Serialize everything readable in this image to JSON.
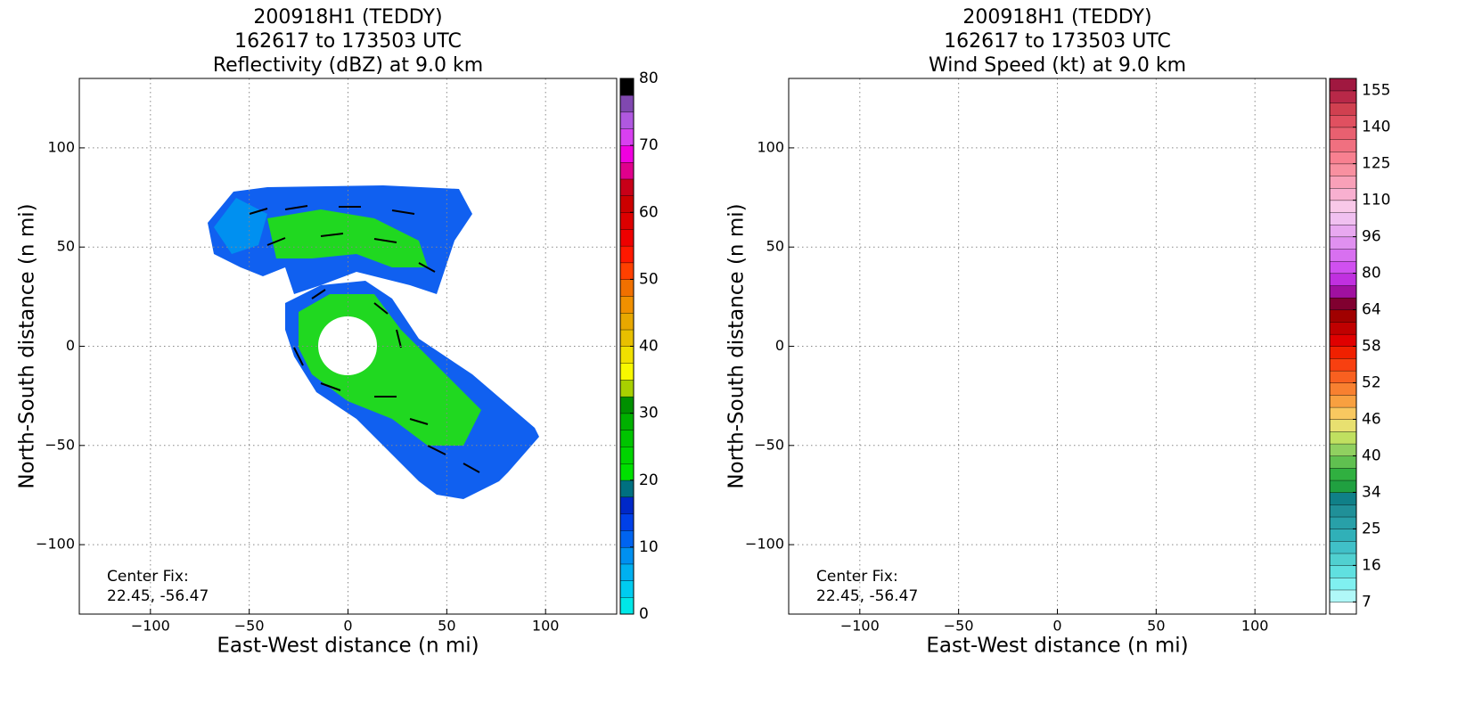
{
  "chart_data": [
    {
      "type": "heatmap",
      "title": [
        "200918H1 (TEDDY)",
        "162617 to 173503 UTC",
        "Reflectivity (dBZ) at 9.0 km"
      ],
      "xlabel": "East-West distance (n mi)",
      "ylabel": "North-South distance (n mi)",
      "xlim": [
        -136,
        136
      ],
      "ylim": [
        -135,
        135
      ],
      "xticks": [
        {
          "value": -100,
          "label": "−100"
        },
        {
          "value": -50,
          "label": "−50"
        },
        0,
        50,
        100
      ],
      "yticks": [
        {
          "value": -100,
          "label": "−100"
        },
        {
          "value": -50,
          "label": "−50"
        },
        0,
        50,
        100
      ],
      "grid": true,
      "annotation": [
        "Center Fix:",
        "22.45, -56.47"
      ],
      "colorbar": {
        "lim": [
          0,
          80
        ],
        "ticks": [
          0,
          10,
          20,
          30,
          40,
          50,
          60,
          70,
          80
        ],
        "colors": [
          "#00e8e8",
          "#00ccf0",
          "#00b0f0",
          "#0090f0",
          "#0064f0",
          "#0040e8",
          "#0028c8",
          "#007080",
          "#00e000",
          "#00d400",
          "#00c400",
          "#00b000",
          "#009000",
          "#a8d000",
          "#f8f800",
          "#f0e000",
          "#e8c000",
          "#e8a800",
          "#f09000",
          "#f07000",
          "#ff4000",
          "#ff1800",
          "#ee0000",
          "#dd0000",
          "#cc0000",
          "#c80018",
          "#e0008c",
          "#f000e0",
          "#d840f0",
          "#b058e0",
          "#8048b0",
          "#000000"
        ]
      }
    },
    {
      "type": "heatmap",
      "title": [
        "200918H1 (TEDDY)",
        "162617 to 173503 UTC",
        "Wind Speed (kt) at 9.0 km"
      ],
      "xlabel": "East-West distance (n mi)",
      "ylabel": "North-South distance (n mi)",
      "xlim": [
        -136,
        136
      ],
      "ylim": [
        -135,
        135
      ],
      "xticks": [
        {
          "value": -100,
          "label": "−100"
        },
        {
          "value": -50,
          "label": "−50"
        },
        0,
        50,
        100
      ],
      "yticks": [
        {
          "value": -100,
          "label": "−100"
        },
        {
          "value": -50,
          "label": "−50"
        },
        0,
        50,
        100
      ],
      "grid": true,
      "annotation": [
        "Center Fix:",
        "22.45, -56.47"
      ],
      "colorbar": {
        "levels": [
          4,
          7,
          10,
          13,
          16,
          19,
          22,
          25,
          28,
          31,
          34,
          36,
          38,
          40,
          42,
          44,
          46,
          48,
          50,
          52,
          54,
          56,
          58,
          60,
          62,
          64,
          69,
          75,
          80,
          85,
          91,
          96,
          101,
          105,
          110,
          115,
          120,
          125,
          130,
          135,
          140,
          145,
          150,
          155,
          160
        ],
        "ticks": [
          7,
          16,
          25,
          34,
          40,
          46,
          52,
          58,
          64,
          80,
          96,
          110,
          125,
          140,
          155
        ],
        "colors": [
          "#ffffff",
          "#b0f8f8",
          "#80f0f0",
          "#60e0e0",
          "#50d0d0",
          "#40c0c8",
          "#30b0b8",
          "#28a0a8",
          "#209098",
          "#108088",
          "#20a040",
          "#30b040",
          "#60c050",
          "#90d060",
          "#c0e060",
          "#e8e070",
          "#f8c860",
          "#f8a040",
          "#f88030",
          "#f86020",
          "#f84010",
          "#f02000",
          "#e00000",
          "#c00000",
          "#a00000",
          "#800030",
          "#a010a0",
          "#c030e0",
          "#d050f0",
          "#d870f0",
          "#e090f0",
          "#e8a8f0",
          "#f0c0f0",
          "#f8c8e8",
          "#f8b0d0",
          "#f8a0b8",
          "#f890a0",
          "#f88090",
          "#f07080",
          "#e86070",
          "#e05060",
          "#d04050",
          "#b82848",
          "#a01840"
        ]
      }
    }
  ]
}
